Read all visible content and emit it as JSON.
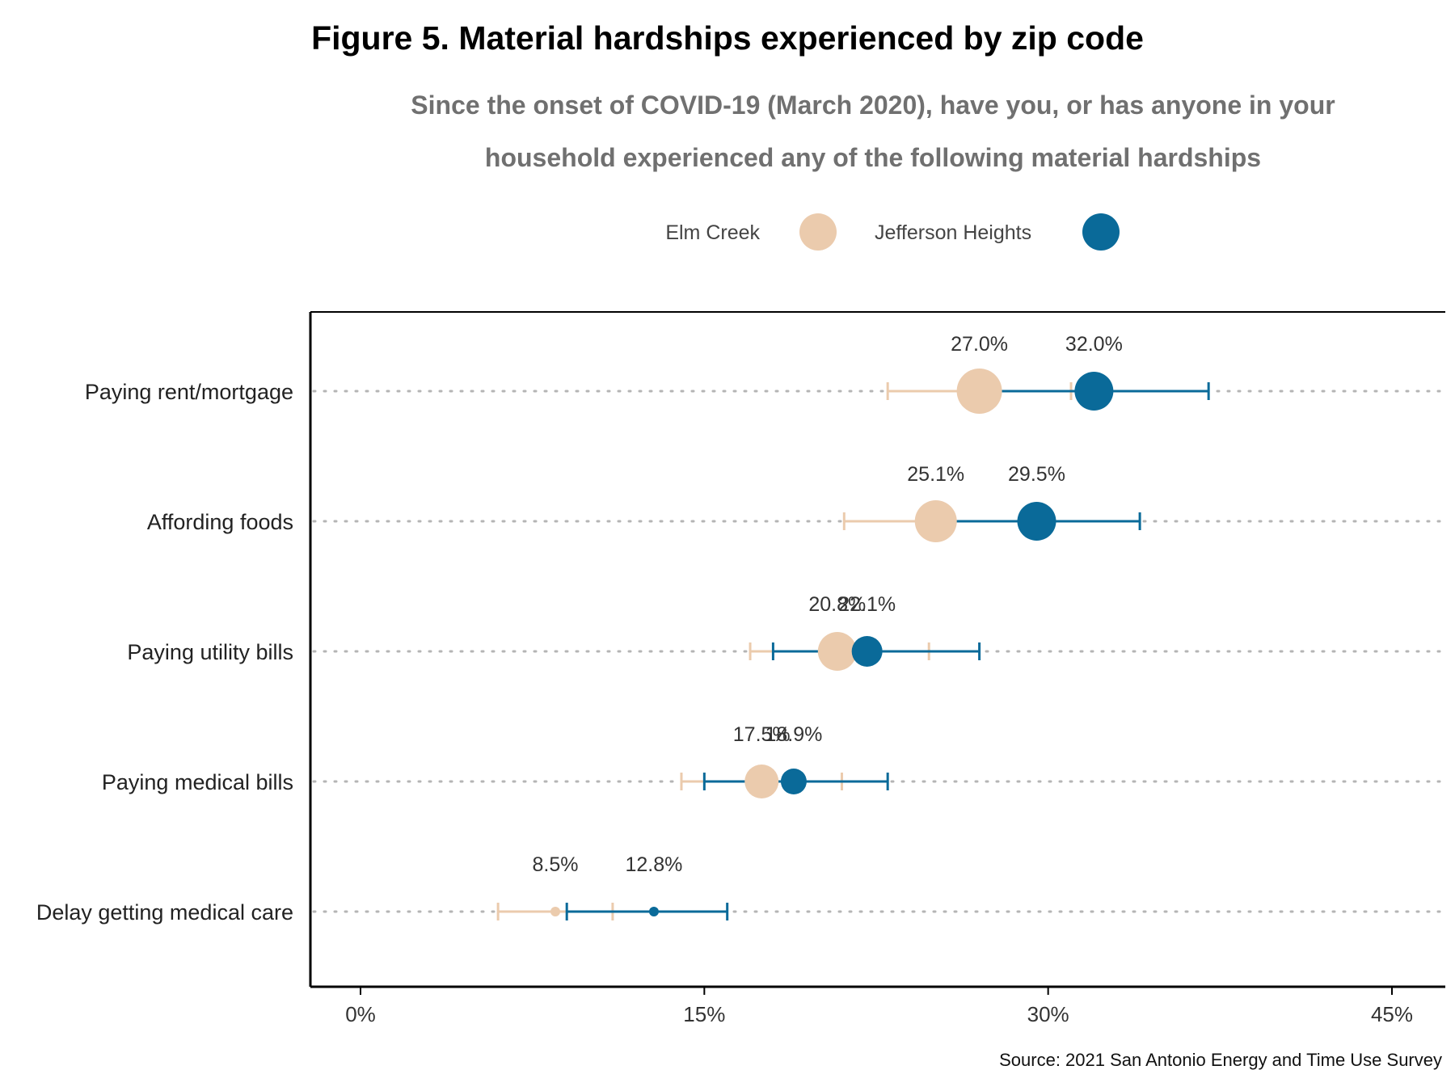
{
  "chart_data": {
    "type": "scatter",
    "title": "Figure 5. Material hardships experienced by zip code",
    "subtitle": "Since the onset of COVID-19 (March 2020), have you, or has anyone in your household experienced any of the following material hardships",
    "source": "Source: 2021 San Antonio Energy and Time Use Survey",
    "categories": [
      "Paying rent/mortgage",
      "Affording foods",
      "Paying utility bills",
      "Paying medical bills",
      "Delay getting medical care"
    ],
    "xlim": [
      0,
      45
    ],
    "xticks": [
      0,
      15,
      30,
      45
    ],
    "xtick_labels": [
      "0%",
      "15%",
      "30%",
      "45%"
    ],
    "grid": "dotted horizontal lines",
    "legend_position": "top",
    "series": [
      {
        "name": "Elm Creek",
        "color": "#EBCBAD",
        "values": [
          27.0,
          25.1,
          20.8,
          17.5,
          8.5
        ],
        "labels": [
          "27.0%",
          "25.1%",
          "20.8%",
          "17.5%",
          "8.5%"
        ],
        "ci_low": [
          23.0,
          21.1,
          17.0,
          14.0,
          6.0
        ],
        "ci_high": [
          31.0,
          29.1,
          24.8,
          21.0,
          11.0
        ]
      },
      {
        "name": "Jefferson Heights",
        "color": "#0A6A99",
        "values": [
          32.0,
          29.5,
          22.1,
          18.9,
          12.8
        ],
        "labels": [
          "32.0%",
          "29.5%",
          "22.1%",
          "18.9%",
          "12.8%"
        ],
        "ci_low": [
          27.0,
          25.0,
          18.0,
          15.0,
          9.0
        ],
        "ci_high": [
          37.0,
          34.0,
          27.0,
          23.0,
          16.0
        ]
      }
    ]
  }
}
